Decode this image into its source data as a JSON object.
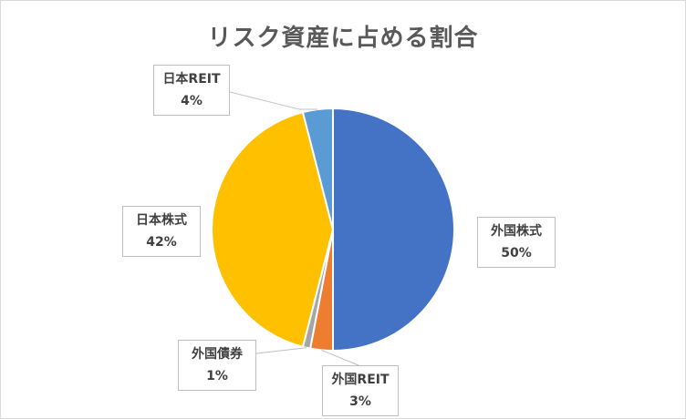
{
  "chart_data": {
    "type": "pie",
    "title": "リスク資産に占める割合",
    "slices": [
      {
        "label": "外国株式",
        "percent_label": "50%",
        "value": 50,
        "color": "#4472C4"
      },
      {
        "label": "外国REIT",
        "percent_label": "3%",
        "value": 3,
        "color": "#ED7D31"
      },
      {
        "label": "外国債券",
        "percent_label": "1%",
        "value": 1,
        "color": "#A5A5A5"
      },
      {
        "label": "日本株式",
        "percent_label": "42%",
        "value": 42,
        "color": "#FFC000"
      },
      {
        "label": "日本REIT",
        "percent_label": "4%",
        "value": 4,
        "color": "#5B9BD5"
      }
    ],
    "start_angle_deg": 0,
    "direction": "clockwise",
    "legend": "none",
    "data_labels": "callouts"
  }
}
